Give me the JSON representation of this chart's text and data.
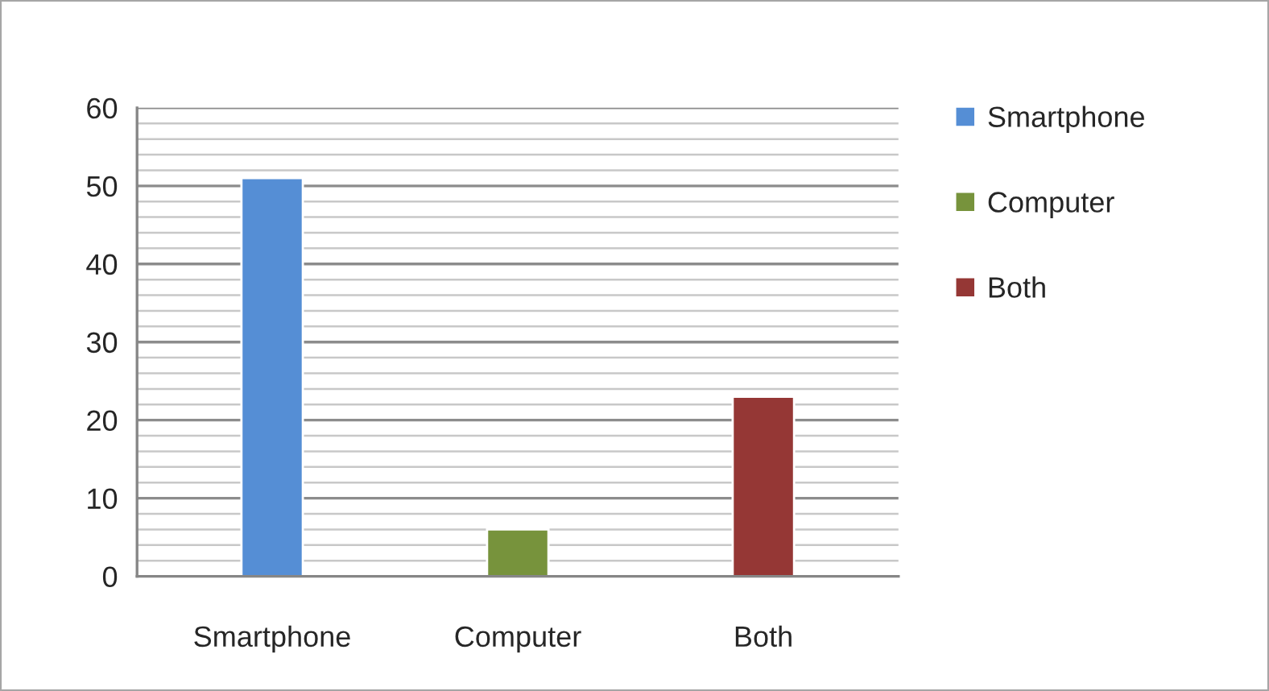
{
  "chart_data": {
    "type": "bar",
    "categories": [
      "Smartphone",
      "Computer",
      "Both"
    ],
    "series": [
      {
        "name": "Smartphone",
        "color": "#558ed5",
        "values": [
          51,
          null,
          null
        ]
      },
      {
        "name": "Computer",
        "color": "#77933c",
        "values": [
          null,
          6,
          null
        ]
      },
      {
        "name": "Both",
        "color": "#953735",
        "values": [
          null,
          null,
          23
        ]
      }
    ],
    "ylim": [
      0,
      60
    ],
    "yticks": [
      0,
      {
        "value": 2,
        "label": null
      },
      {
        "value": 4,
        "label": null
      },
      {
        "value": 6,
        "label": null
      },
      {
        "value": 8,
        "label": null
      },
      10,
      {
        "value": 12,
        "label": null
      },
      {
        "value": 14,
        "label": null
      },
      {
        "value": 16,
        "label": null
      },
      {
        "value": 18,
        "label": null
      },
      20,
      {
        "value": 22,
        "label": null
      },
      {
        "value": 24,
        "label": null
      },
      {
        "value": 26,
        "label": null
      },
      {
        "value": 28,
        "label": null
      },
      30,
      {
        "value": 32,
        "label": null
      },
      {
        "value": 34,
        "label": null
      },
      {
        "value": 36,
        "label": null
      },
      {
        "value": 38,
        "label": null
      },
      40,
      {
        "value": 42,
        "label": null
      },
      {
        "value": 44,
        "label": null
      },
      {
        "value": 46,
        "label": null
      },
      {
        "value": 48,
        "label": null
      },
      50,
      {
        "value": 52,
        "label": null
      },
      {
        "value": 54,
        "label": null
      },
      {
        "value": 56,
        "label": null
      },
      {
        "value": 58,
        "label": null
      },
      60
    ],
    "grid": "y",
    "legend": "right"
  }
}
